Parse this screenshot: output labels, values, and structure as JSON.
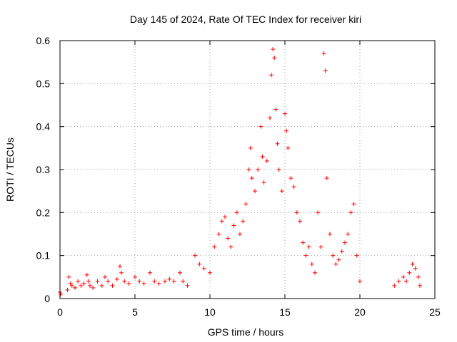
{
  "chart_data": {
    "type": "scatter",
    "title": "Day 145 of 2024, Rate Of TEC Index for receiver kiri",
    "xlabel": "GPS time / hours",
    "ylabel": "ROTI / TECUs",
    "xlim": [
      0,
      25
    ],
    "ylim": [
      0,
      0.6
    ],
    "xticks": [
      "0",
      "5",
      "10",
      "15",
      "20",
      "25"
    ],
    "yticks": [
      "0",
      "0.1",
      "0.2",
      "0.3",
      "0.4",
      "0.5",
      "0.6"
    ],
    "grid": true,
    "marker": "+",
    "color": "#ff0000",
    "series": [
      {
        "x": [
          0.0,
          0.05,
          0.5,
          0.6,
          0.7,
          0.8,
          1.0,
          1.2,
          1.4,
          1.6,
          1.8,
          1.9,
          2.0,
          2.2,
          2.5,
          2.8,
          3.0,
          3.2,
          3.5,
          3.8,
          4.0,
          4.1,
          4.3,
          4.6,
          5.0,
          5.3,
          5.6,
          6.0,
          6.3,
          6.6,
          7.0,
          7.3,
          7.6,
          8.0,
          8.2,
          8.5,
          9.0,
          9.3,
          9.6,
          10.0,
          10.3,
          10.6,
          10.8,
          11.0,
          11.2,
          11.4,
          11.6,
          11.8,
          12.0,
          12.2,
          12.4,
          12.6,
          12.7,
          12.8,
          13.0,
          13.2,
          13.4,
          13.5,
          13.6,
          13.8,
          14.0,
          14.1,
          14.2,
          14.3,
          14.4,
          14.5,
          14.6,
          14.8,
          15.0,
          15.1,
          15.2,
          15.4,
          15.6,
          15.8,
          16.0,
          16.2,
          16.4,
          16.6,
          16.8,
          17.0,
          17.2,
          17.4,
          17.6,
          17.7,
          17.8,
          18.0,
          18.2,
          18.4,
          18.6,
          18.8,
          19.0,
          19.2,
          19.4,
          19.6,
          19.8,
          20.0,
          22.3,
          22.6,
          22.9,
          23.1,
          23.3,
          23.5,
          23.7,
          23.9,
          24.0
        ],
        "y": [
          0.015,
          0.01,
          0.02,
          0.05,
          0.035,
          0.03,
          0.025,
          0.04,
          0.03,
          0.035,
          0.055,
          0.04,
          0.03,
          0.025,
          0.04,
          0.03,
          0.05,
          0.04,
          0.03,
          0.045,
          0.075,
          0.06,
          0.04,
          0.035,
          0.05,
          0.04,
          0.035,
          0.06,
          0.04,
          0.035,
          0.04,
          0.045,
          0.04,
          0.06,
          0.04,
          0.03,
          0.1,
          0.08,
          0.07,
          0.06,
          0.12,
          0.15,
          0.18,
          0.19,
          0.14,
          0.12,
          0.17,
          0.2,
          0.15,
          0.18,
          0.22,
          0.3,
          0.35,
          0.28,
          0.25,
          0.3,
          0.4,
          0.33,
          0.27,
          0.32,
          0.42,
          0.52,
          0.58,
          0.56,
          0.44,
          0.36,
          0.3,
          0.25,
          0.43,
          0.39,
          0.35,
          0.28,
          0.26,
          0.2,
          0.18,
          0.13,
          0.1,
          0.12,
          0.08,
          0.06,
          0.2,
          0.12,
          0.57,
          0.53,
          0.28,
          0.15,
          0.1,
          0.08,
          0.09,
          0.11,
          0.13,
          0.15,
          0.2,
          0.22,
          0.1,
          0.04,
          0.03,
          0.04,
          0.05,
          0.04,
          0.06,
          0.08,
          0.07,
          0.05,
          0.03
        ]
      }
    ]
  }
}
